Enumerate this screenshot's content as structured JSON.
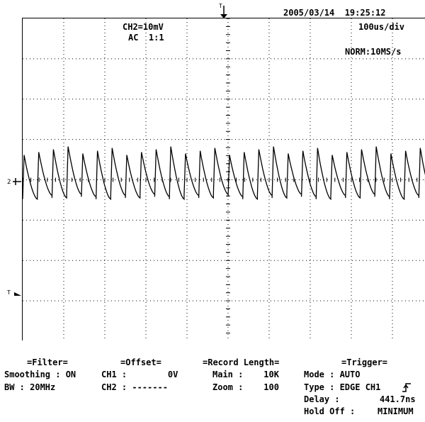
{
  "header": {
    "datetime": "2005/03/14  19:25:12",
    "channel": "CH2=10mV",
    "coupling": "AC  1:1",
    "timebase": "100us/div",
    "sample_mode": "NORM:10MS/s"
  },
  "markers": {
    "ch2": "2",
    "trigger": "T"
  },
  "waveform": {
    "pulse_count": 28,
    "peak_mv": 7.2,
    "trough_mv": -4.2,
    "line_color": "#000000"
  },
  "settings": {
    "filter": {
      "title": "=Filter=",
      "smoothing": "Smoothing : ON",
      "bw": "BW : 20MHz"
    },
    "offset": {
      "title": "=Offset=",
      "ch1": "CH1 :        0V",
      "ch2": "CH2 : -------"
    },
    "record": {
      "title": "=Record Length=",
      "main": "Main :    10K",
      "zoom": "Zoom :    100"
    },
    "trigger": {
      "title": "=Trigger=",
      "mode": "Mode : AUTO",
      "type": "Type : EDGE CH1",
      "delay_label": "Delay :",
      "delay_value": "441.7ns",
      "holdoff_label": "Hold Off :",
      "holdoff_value": "MINIMUM"
    }
  }
}
